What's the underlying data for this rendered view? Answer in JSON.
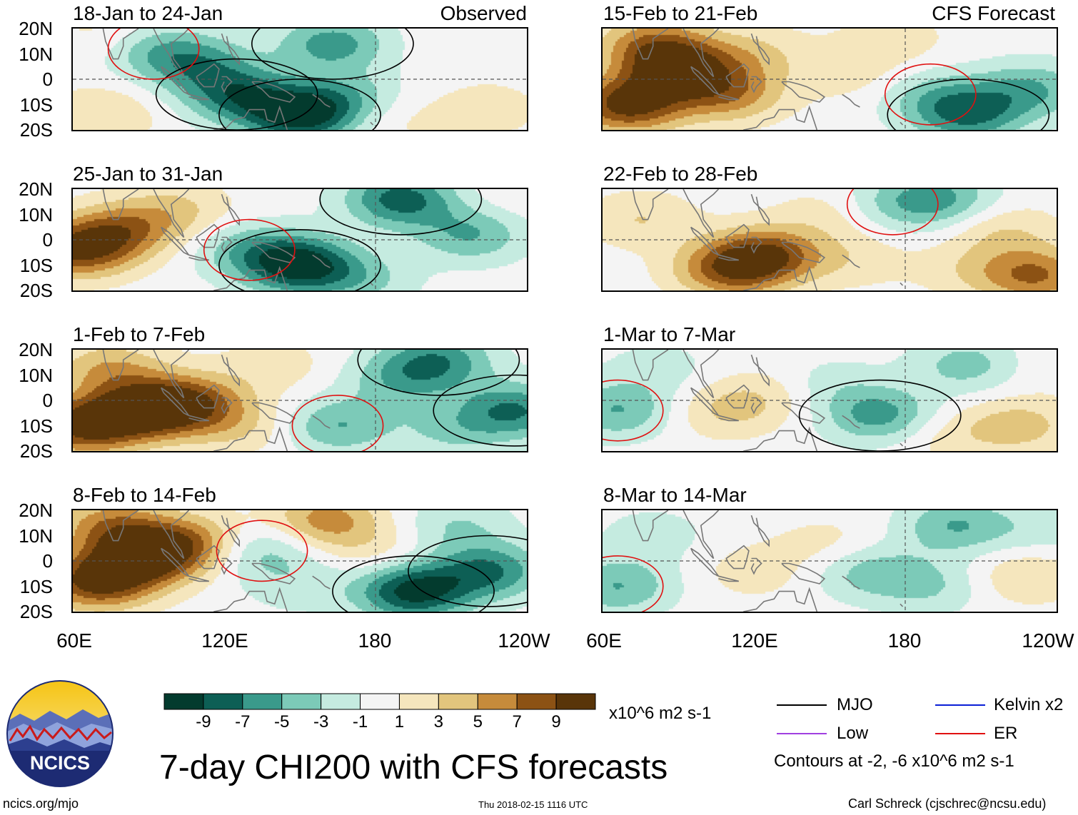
{
  "observed_label": "Observed",
  "forecast_label": "CFS Forecast",
  "colors": {
    "scale": [
      "#033b2e",
      "#0d5f55",
      "#3a9a8b",
      "#7ccab8",
      "#c5ebe0",
      "#f4f4f4",
      "#f5e6bd",
      "#e2c57d",
      "#c68b3b",
      "#8c5214",
      "#593509"
    ],
    "mjo": "#000000",
    "low": "#a040e0",
    "kelvin": "#0a1fd6",
    "er": "#e01010",
    "land": "#777777"
  },
  "axes": {
    "lat_labels": [
      "20N",
      "10N",
      "0",
      "10S",
      "20S"
    ],
    "lon_labels": [
      "60E",
      "120E",
      "180",
      "120W"
    ]
  },
  "chart_data": {
    "type": "heatmap",
    "title": "7-day CHI200 with CFS forecasts",
    "x_range": [
      60,
      240
    ],
    "y_range": [
      -20,
      20
    ],
    "panels": [
      {
        "id": "p1",
        "title": "18-Jan to 24-Jan",
        "source": "Observed",
        "anomalies": [
          {
            "lon": 72,
            "lat": -14,
            "v": 3
          },
          {
            "lon": 75,
            "lat": 18,
            "v": 2
          },
          {
            "lon": 92,
            "lat": 12,
            "v": -4
          },
          {
            "lon": 110,
            "lat": 6,
            "v": -5
          },
          {
            "lon": 125,
            "lat": -6,
            "v": -7
          },
          {
            "lon": 150,
            "lat": -14,
            "v": -10
          },
          {
            "lon": 170,
            "lat": -8,
            "v": -4
          },
          {
            "lon": 163,
            "lat": 14,
            "v": -6
          },
          {
            "lon": 185,
            "lat": -15,
            "v": 2
          },
          {
            "lon": 225,
            "lat": -12,
            "v": 2
          },
          {
            "lon": 220,
            "lat": 15,
            "v": 1
          }
        ]
      },
      {
        "id": "p2",
        "title": "15-Feb to 21-Feb",
        "source": "CFS Forecast",
        "anomalies": [
          {
            "lon": 70,
            "lat": -10,
            "v": 10
          },
          {
            "lon": 90,
            "lat": 4,
            "v": 9
          },
          {
            "lon": 80,
            "lat": 14,
            "v": 6
          },
          {
            "lon": 110,
            "lat": -6,
            "v": 6
          },
          {
            "lon": 120,
            "lat": 10,
            "v": 3
          },
          {
            "lon": 160,
            "lat": 2,
            "v": 2
          },
          {
            "lon": 205,
            "lat": -14,
            "v": -7
          },
          {
            "lon": 190,
            "lat": -6,
            "v": -3
          },
          {
            "lon": 230,
            "lat": -4,
            "v": -5
          },
          {
            "lon": 175,
            "lat": 16,
            "v": 2
          }
        ]
      },
      {
        "id": "p3",
        "title": "25-Jan to 31-Jan",
        "source": "",
        "anomalies": [
          {
            "lon": 62,
            "lat": -4,
            "v": 9
          },
          {
            "lon": 80,
            "lat": 4,
            "v": 6
          },
          {
            "lon": 102,
            "lat": 12,
            "v": 3
          },
          {
            "lon": 150,
            "lat": -10,
            "v": -10
          },
          {
            "lon": 130,
            "lat": -4,
            "v": -4
          },
          {
            "lon": 190,
            "lat": 16,
            "v": -8
          },
          {
            "lon": 218,
            "lat": 2,
            "v": -5
          },
          {
            "lon": 175,
            "lat": -16,
            "v": -3
          },
          {
            "lon": 235,
            "lat": 18,
            "v": 1
          }
        ]
      },
      {
        "id": "p4",
        "title": "22-Feb to 28-Feb",
        "source": "",
        "anomalies": [
          {
            "lon": 75,
            "lat": 8,
            "v": 3
          },
          {
            "lon": 125,
            "lat": -6,
            "v": 8
          },
          {
            "lon": 110,
            "lat": -12,
            "v": 7
          },
          {
            "lon": 150,
            "lat": 10,
            "v": 2
          },
          {
            "lon": 175,
            "lat": 14,
            "v": -3
          },
          {
            "lon": 195,
            "lat": 16,
            "v": -5
          },
          {
            "lon": 205,
            "lat": -12,
            "v": 2
          },
          {
            "lon": 232,
            "lat": -14,
            "v": 7
          },
          {
            "lon": 218,
            "lat": 4,
            "v": 3
          },
          {
            "lon": 160,
            "lat": -8,
            "v": 2
          }
        ]
      },
      {
        "id": "p5",
        "title": "1-Feb to 7-Feb",
        "source": "",
        "anomalies": [
          {
            "lon": 65,
            "lat": -10,
            "v": 10
          },
          {
            "lon": 75,
            "lat": 12,
            "v": 5
          },
          {
            "lon": 90,
            "lat": -4,
            "v": 10
          },
          {
            "lon": 108,
            "lat": 0,
            "v": 6
          },
          {
            "lon": 125,
            "lat": -10,
            "v": 3
          },
          {
            "lon": 140,
            "lat": 14,
            "v": 2
          },
          {
            "lon": 165,
            "lat": -10,
            "v": -5
          },
          {
            "lon": 190,
            "lat": 8,
            "v": -4
          },
          {
            "lon": 205,
            "lat": 16,
            "v": -6
          },
          {
            "lon": 235,
            "lat": -4,
            "v": -7
          },
          {
            "lon": 210,
            "lat": -12,
            "v": -3
          }
        ]
      },
      {
        "id": "p6",
        "title": "1-Mar to 7-Mar",
        "source": "",
        "anomalies": [
          {
            "lon": 66,
            "lat": -4,
            "v": -5
          },
          {
            "lon": 82,
            "lat": 12,
            "v": -2
          },
          {
            "lon": 108,
            "lat": -4,
            "v": 3
          },
          {
            "lon": 125,
            "lat": 2,
            "v": 2
          },
          {
            "lon": 150,
            "lat": 6,
            "v": -2
          },
          {
            "lon": 170,
            "lat": -6,
            "v": -6
          },
          {
            "lon": 205,
            "lat": 14,
            "v": -4
          },
          {
            "lon": 225,
            "lat": -10,
            "v": 4
          },
          {
            "lon": 195,
            "lat": -14,
            "v": 2
          },
          {
            "lon": 235,
            "lat": 14,
            "v": 1
          }
        ]
      },
      {
        "id": "p7",
        "title": "8-Feb to 14-Feb",
        "source": "",
        "anomalies": [
          {
            "lon": 70,
            "lat": -8,
            "v": 10
          },
          {
            "lon": 90,
            "lat": 2,
            "v": 10
          },
          {
            "lon": 75,
            "lat": 14,
            "v": 6
          },
          {
            "lon": 108,
            "lat": 8,
            "v": 5
          },
          {
            "lon": 135,
            "lat": 4,
            "v": -4
          },
          {
            "lon": 160,
            "lat": 16,
            "v": 6
          },
          {
            "lon": 195,
            "lat": -12,
            "v": -10
          },
          {
            "lon": 225,
            "lat": -4,
            "v": -7
          },
          {
            "lon": 212,
            "lat": 14,
            "v": -3
          },
          {
            "lon": 150,
            "lat": -10,
            "v": -2
          },
          {
            "lon": 180,
            "lat": 4,
            "v": 2
          }
        ]
      },
      {
        "id": "p8",
        "title": "8-Mar to 14-Mar",
        "source": "",
        "anomalies": [
          {
            "lon": 66,
            "lat": -10,
            "v": -5
          },
          {
            "lon": 80,
            "lat": 10,
            "v": -2
          },
          {
            "lon": 120,
            "lat": -4,
            "v": 2
          },
          {
            "lon": 150,
            "lat": 6,
            "v": 2
          },
          {
            "lon": 165,
            "lat": -4,
            "v": -4
          },
          {
            "lon": 190,
            "lat": -10,
            "v": -3
          },
          {
            "lon": 200,
            "lat": 14,
            "v": -5
          },
          {
            "lon": 228,
            "lat": -6,
            "v": 3
          },
          {
            "lon": 235,
            "lat": 12,
            "v": -2
          }
        ]
      }
    ],
    "colorbar": {
      "tick_labels": [
        "-9",
        "-7",
        "-5",
        "-3",
        "-1",
        "1",
        "3",
        "5",
        "7",
        "9"
      ],
      "units": "x10^6 m2 s-1"
    },
    "legend": {
      "mjo": "MJO",
      "kelvin": "Kelvin x2",
      "low": "Low",
      "er": "ER",
      "contours_note": "Contours at -2, -6 x10^6 m2 s-1"
    }
  },
  "logo": {
    "text": "NCICS"
  },
  "footer": {
    "site": "ncics.org/mjo",
    "timestamp": "Thu 2018-02-15 1116 UTC",
    "author": "Carl Schreck (cjschrec@ncsu.edu)"
  }
}
